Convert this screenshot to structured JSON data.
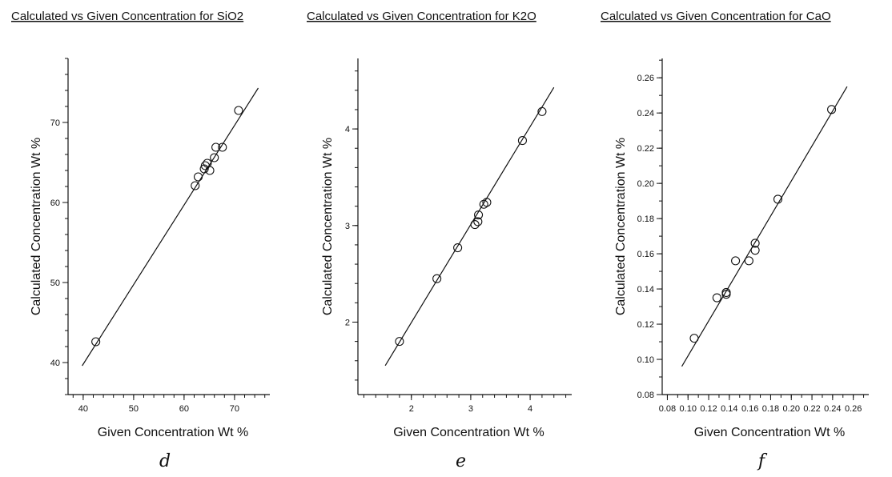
{
  "chart_data": [
    {
      "type": "scatter",
      "panel_label": "d",
      "title": "Calculated vs Given Concentration for SiO2",
      "xlabel": "Given Concentration  Wt %",
      "ylabel": "Calculated Concentration  Wt %",
      "xlim": [
        37,
        77
      ],
      "ylim": [
        36,
        78
      ],
      "xticks": [
        40,
        50,
        60,
        70
      ],
      "yticks": [
        40,
        50,
        60,
        70
      ],
      "xtick_labels": [
        "40",
        "50",
        "60",
        "70"
      ],
      "ytick_labels": [
        "40",
        "50",
        "60",
        "70"
      ],
      "x_minor_step": 2,
      "y_minor_step": 2,
      "fit_line": [
        [
          39.8,
          39.6
        ],
        [
          74.7,
          74.3
        ]
      ],
      "points": [
        [
          42.5,
          42.6
        ],
        [
          62.2,
          62.1
        ],
        [
          62.8,
          63.2
        ],
        [
          64.0,
          64.2
        ],
        [
          64.2,
          64.6
        ],
        [
          64.6,
          64.9
        ],
        [
          65.1,
          64.0
        ],
        [
          66.0,
          65.6
        ],
        [
          66.3,
          66.9
        ],
        [
          67.6,
          66.9
        ],
        [
          70.8,
          71.5
        ]
      ],
      "grid": false
    },
    {
      "type": "scatter",
      "panel_label": "e",
      "title": "Calculated vs Given Concentration for K2O",
      "xlabel": "Given Concentration  Wt %",
      "ylabel": "Calculated Concentration  Wt %",
      "xlim": [
        1.1,
        4.7
      ],
      "ylim": [
        1.25,
        4.73
      ],
      "xticks": [
        2,
        3,
        4
      ],
      "yticks": [
        2,
        3,
        4
      ],
      "xtick_labels": [
        "2",
        "3",
        "4"
      ],
      "ytick_labels": [
        "2",
        "3",
        "4"
      ],
      "x_minor_step": 0.2,
      "y_minor_step": 0.2,
      "fit_line": [
        [
          1.56,
          1.55
        ],
        [
          4.4,
          4.43
        ]
      ],
      "points": [
        [
          1.8,
          1.8
        ],
        [
          2.43,
          2.45
        ],
        [
          2.78,
          2.77
        ],
        [
          3.07,
          3.01
        ],
        [
          3.12,
          3.04
        ],
        [
          3.13,
          3.11
        ],
        [
          3.22,
          3.22
        ],
        [
          3.27,
          3.24
        ],
        [
          3.87,
          3.88
        ],
        [
          4.2,
          4.18
        ]
      ],
      "grid": false
    },
    {
      "type": "scatter",
      "panel_label": "f",
      "title": "Calculated vs Given Concentration for CaO",
      "xlabel": "Given Concentration  Wt %",
      "ylabel": "Calculated Concentration  Wt %",
      "xlim": [
        0.075,
        0.275
      ],
      "ylim": [
        0.08,
        0.271
      ],
      "xticks": [
        0.08,
        0.1,
        0.12,
        0.14,
        0.16,
        0.18,
        0.2,
        0.22,
        0.24,
        0.26
      ],
      "yticks": [
        0.08,
        0.1,
        0.12,
        0.14,
        0.16,
        0.18,
        0.2,
        0.22,
        0.24,
        0.26
      ],
      "xtick_labels": [
        "0.08",
        "0.10",
        "0.12",
        "0.14",
        "0.16",
        "0.18",
        "0.20",
        "0.22",
        "0.24",
        "0.26"
      ],
      "ytick_labels": [
        "0.08",
        "0.10",
        "0.12",
        "0.14",
        "0.16",
        "0.18",
        "0.20",
        "0.22",
        "0.24",
        "0.26"
      ],
      "x_minor_step": 0.01,
      "y_minor_step": 0.01,
      "fit_line": [
        [
          0.094,
          0.096
        ],
        [
          0.254,
          0.255
        ]
      ],
      "points": [
        [
          0.106,
          0.112
        ],
        [
          0.128,
          0.135
        ],
        [
          0.137,
          0.137
        ],
        [
          0.137,
          0.138
        ],
        [
          0.146,
          0.156
        ],
        [
          0.159,
          0.156
        ],
        [
          0.165,
          0.162
        ],
        [
          0.165,
          0.166
        ],
        [
          0.187,
          0.191
        ],
        [
          0.239,
          0.242
        ]
      ],
      "grid": false
    }
  ]
}
